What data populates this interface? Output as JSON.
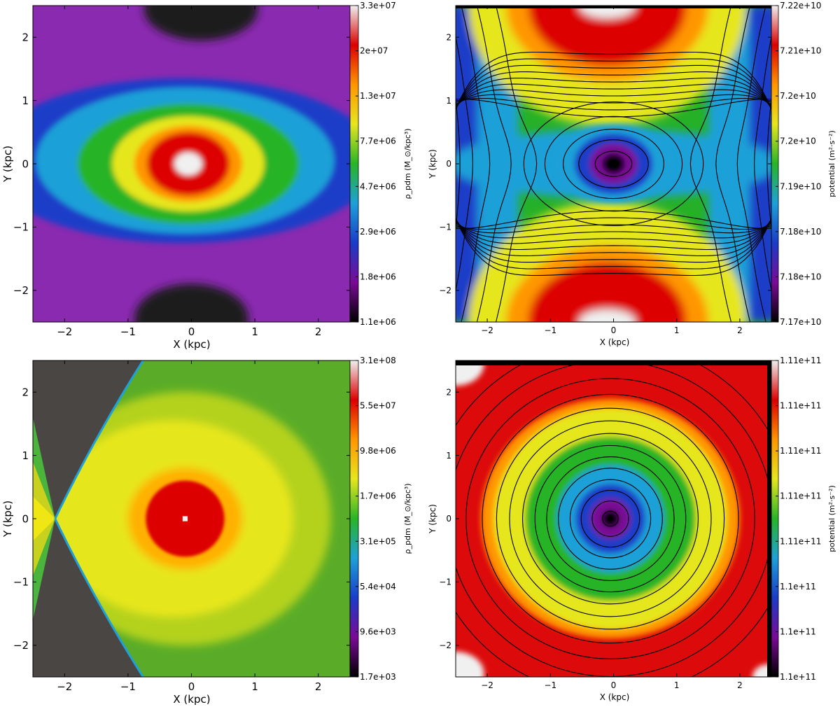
{
  "chart_data": [
    {
      "type": "heatmap",
      "title": "",
      "xlabel": "X (kpc)",
      "ylabel": "Y (kpc)",
      "xlim": [
        -2.5,
        2.5
      ],
      "ylim": [
        -2.5,
        2.5
      ],
      "xticks": [
        "−2",
        "−1",
        "0",
        "1",
        "2"
      ],
      "yticks": [
        "−2",
        "−1",
        "0",
        "1",
        "2"
      ],
      "colorbar": {
        "label": "ρ_pdm (M_⊙/kpc³)",
        "ticks": [
          "3.3e+07",
          "2e+07",
          "1.3e+07",
          "7.7e+06",
          "4.7e+06",
          "2.9e+06",
          "1.8e+06",
          "1.1e+06"
        ]
      },
      "contours": false,
      "features": "central peak at (-0.05, 0); density minima near (0, ±2.4)"
    },
    {
      "type": "heatmap",
      "title": "",
      "xlabel": "X (kpc)",
      "ylabel": "Y (kpc)",
      "xlim": [
        -2.5,
        2.5
      ],
      "ylim": [
        -2.5,
        2.5
      ],
      "xticks": [
        "−2",
        "−1",
        "0",
        "1",
        "2"
      ],
      "yticks": [
        "−2",
        "−1",
        "0",
        "1",
        "2"
      ],
      "colorbar": {
        "label": "potential (m²·s⁻²)",
        "ticks": [
          "7.22e+10",
          "7.21e+10",
          "7.2e+10",
          "7.2e+10",
          "7.19e+10",
          "7.18e+10",
          "7.18e+10",
          "7.17e+10"
        ]
      },
      "contours": true,
      "features": "potential minimum at origin; maxima near (0, ±2.5); saddle points near (±1.5, 0)"
    },
    {
      "type": "heatmap",
      "title": "",
      "xlabel": "X (kpc)",
      "ylabel": "Y (kpc)",
      "xlim": [
        -2.5,
        2.5
      ],
      "ylim": [
        -2.5,
        2.5
      ],
      "xticks": [
        "−2",
        "−1",
        "0",
        "1",
        "2"
      ],
      "yticks": [
        "−2",
        "−1",
        "0",
        "1",
        "2"
      ],
      "colorbar": {
        "label": "ρ_pdm (M_⊙/kpc³)",
        "ticks": [
          "3.1e+08",
          "5.5e+07",
          "9.8e+06",
          "1.7e+06",
          "3.1e+05",
          "5.4e+04",
          "9.6e+03",
          "1.7e+03"
        ]
      },
      "contours": false,
      "features": "central peak at (-0.1, 0); phantom-density-free wedge (grey) near x = -2.1"
    },
    {
      "type": "heatmap",
      "title": "",
      "xlabel": "X (kpc)",
      "ylabel": "Y (kpc)",
      "xlim": [
        -2.5,
        2.5
      ],
      "ylim": [
        -2.5,
        2.5
      ],
      "xticks": [
        "−2",
        "−1",
        "0",
        "1",
        "2"
      ],
      "yticks": [
        "−2",
        "−1",
        "0",
        "1",
        "2"
      ],
      "colorbar": {
        "label": "potential (m²·s⁻²)",
        "ticks": [
          "1.11e+11",
          "1.11e+11",
          "1.11e+11",
          "1.11e+11",
          "1.11e+11",
          "1.1e+11",
          "1.1e+11",
          "1.1e+11"
        ]
      },
      "contours": true,
      "features": "roughly circular potential well centred at the origin"
    }
  ],
  "colors": {
    "spectral": [
      "#000000",
      "#7a0a96",
      "#1a3cc8",
      "#1ea0d8",
      "#28b428",
      "#e6e61e",
      "#ff9600",
      "#dc0000",
      "#f0f0f0"
    ],
    "masked": "#4a4644"
  }
}
